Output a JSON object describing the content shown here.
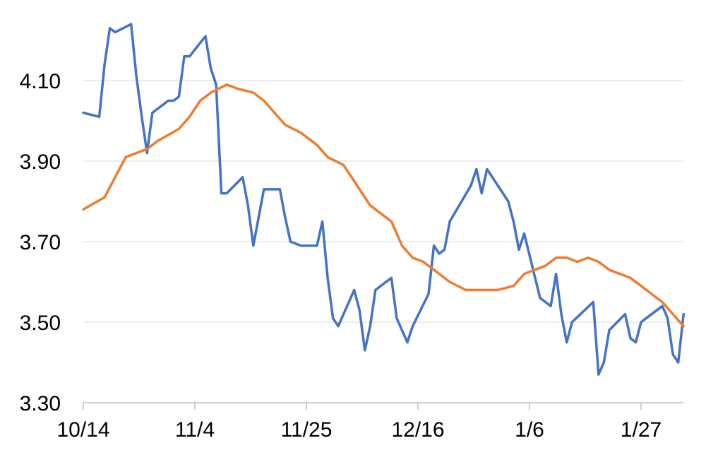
{
  "chart_data": {
    "type": "line",
    "title": "",
    "xlabel": "",
    "ylabel": "",
    "x_tick_labels": [
      "10/14",
      "11/4",
      "11/25",
      "12/16",
      "1/6",
      "1/27"
    ],
    "y_tick_labels": [
      "3.30",
      "3.50",
      "3.70",
      "3.90",
      "4.10"
    ],
    "y_ticks": [
      3.3,
      3.5,
      3.7,
      3.9,
      4.1
    ],
    "ylim": [
      3.3,
      4.3
    ],
    "grid": "horizontal",
    "legend": "none",
    "series": [
      {
        "color": "#4472C4",
        "points": [
          [
            "10/14",
            4.02
          ],
          [
            "10/17",
            4.01
          ],
          [
            "10/18",
            4.14
          ],
          [
            "10/19",
            4.23
          ],
          [
            "10/20",
            4.22
          ],
          [
            "10/23",
            4.24
          ],
          [
            "10/24",
            4.11
          ],
          [
            "10/25",
            4.01
          ],
          [
            "10/26",
            3.92
          ],
          [
            "10/27",
            4.02
          ],
          [
            "10/30",
            4.05
          ],
          [
            "10/31",
            4.05
          ],
          [
            "11/1",
            4.06
          ],
          [
            "11/2",
            4.16
          ],
          [
            "11/3",
            4.16
          ],
          [
            "11/6",
            4.21
          ],
          [
            "11/7",
            4.13
          ],
          [
            "11/8",
            4.09
          ],
          [
            "11/9",
            3.82
          ],
          [
            "11/10",
            3.82
          ],
          [
            "11/13",
            3.86
          ],
          [
            "11/14",
            3.79
          ],
          [
            "11/15",
            3.69
          ],
          [
            "11/16",
            3.76
          ],
          [
            "11/17",
            3.83
          ],
          [
            "11/20",
            3.83
          ],
          [
            "11/21",
            3.76
          ],
          [
            "11/22",
            3.7
          ],
          [
            "11/24",
            3.69
          ],
          [
            "11/27",
            3.69
          ],
          [
            "11/28",
            3.75
          ],
          [
            "11/29",
            3.61
          ],
          [
            "11/30",
            3.51
          ],
          [
            "12/1",
            3.49
          ],
          [
            "12/4",
            3.58
          ],
          [
            "12/5",
            3.53
          ],
          [
            "12/6",
            3.43
          ],
          [
            "12/7",
            3.49
          ],
          [
            "12/8",
            3.58
          ],
          [
            "12/11",
            3.61
          ],
          [
            "12/12",
            3.51
          ],
          [
            "12/13",
            3.48
          ],
          [
            "12/14",
            3.45
          ],
          [
            "12/15",
            3.49
          ],
          [
            "12/18",
            3.57
          ],
          [
            "12/19",
            3.69
          ],
          [
            "12/20",
            3.67
          ],
          [
            "12/21",
            3.68
          ],
          [
            "12/22",
            3.75
          ],
          [
            "12/26",
            3.84
          ],
          [
            "12/27",
            3.88
          ],
          [
            "12/28",
            3.82
          ],
          [
            "12/29",
            3.88
          ],
          [
            "1/2",
            3.8
          ],
          [
            "1/3",
            3.75
          ],
          [
            "1/4",
            3.68
          ],
          [
            "1/5",
            3.72
          ],
          [
            "1/8",
            3.56
          ],
          [
            "1/9",
            3.55
          ],
          [
            "1/10",
            3.54
          ],
          [
            "1/11",
            3.62
          ],
          [
            "1/12",
            3.52
          ],
          [
            "1/13",
            3.45
          ],
          [
            "1/14",
            3.5
          ],
          [
            "1/18",
            3.55
          ],
          [
            "1/19",
            3.37
          ],
          [
            "1/20",
            3.4
          ],
          [
            "1/21",
            3.48
          ],
          [
            "1/24",
            3.52
          ],
          [
            "1/25",
            3.46
          ],
          [
            "1/26",
            3.45
          ],
          [
            "1/27",
            3.5
          ],
          [
            "1/28",
            3.51
          ],
          [
            "1/31",
            3.54
          ],
          [
            "2/1",
            3.51
          ],
          [
            "2/2",
            3.42
          ],
          [
            "2/3",
            3.4
          ],
          [
            "2/4",
            3.52
          ]
        ]
      },
      {
        "color": "#ED7D31",
        "points": [
          [
            "10/14",
            3.78
          ],
          [
            "10/18",
            3.81
          ],
          [
            "10/20",
            3.86
          ],
          [
            "10/22",
            3.91
          ],
          [
            "10/26",
            3.93
          ],
          [
            "10/28",
            3.95
          ],
          [
            "11/1",
            3.98
          ],
          [
            "11/3",
            4.01
          ],
          [
            "11/5",
            4.05
          ],
          [
            "11/7",
            4.07
          ],
          [
            "11/10",
            4.09
          ],
          [
            "11/12",
            4.08
          ],
          [
            "11/15",
            4.07
          ],
          [
            "11/17",
            4.05
          ],
          [
            "11/19",
            4.02
          ],
          [
            "11/21",
            3.99
          ],
          [
            "11/24",
            3.97
          ],
          [
            "11/27",
            3.94
          ],
          [
            "11/29",
            3.91
          ],
          [
            "12/2",
            3.89
          ],
          [
            "12/4",
            3.85
          ],
          [
            "12/7",
            3.79
          ],
          [
            "12/9",
            3.77
          ],
          [
            "12/11",
            3.75
          ],
          [
            "12/13",
            3.69
          ],
          [
            "12/15",
            3.66
          ],
          [
            "12/17",
            3.65
          ],
          [
            "12/19",
            3.63
          ],
          [
            "12/22",
            3.6
          ],
          [
            "12/25",
            3.58
          ],
          [
            "12/28",
            3.58
          ],
          [
            "12/31",
            3.58
          ],
          [
            "1/3",
            3.59
          ],
          [
            "1/5",
            3.62
          ],
          [
            "1/7",
            3.63
          ],
          [
            "1/9",
            3.64
          ],
          [
            "1/11",
            3.66
          ],
          [
            "1/13",
            3.66
          ],
          [
            "1/15",
            3.65
          ],
          [
            "1/17",
            3.66
          ],
          [
            "1/19",
            3.65
          ],
          [
            "1/21",
            3.63
          ],
          [
            "1/23",
            3.62
          ],
          [
            "1/25",
            3.61
          ],
          [
            "1/27",
            3.59
          ],
          [
            "1/29",
            3.57
          ],
          [
            "1/31",
            3.55
          ],
          [
            "2/2",
            3.52
          ],
          [
            "2/4",
            3.49
          ]
        ]
      }
    ]
  }
}
